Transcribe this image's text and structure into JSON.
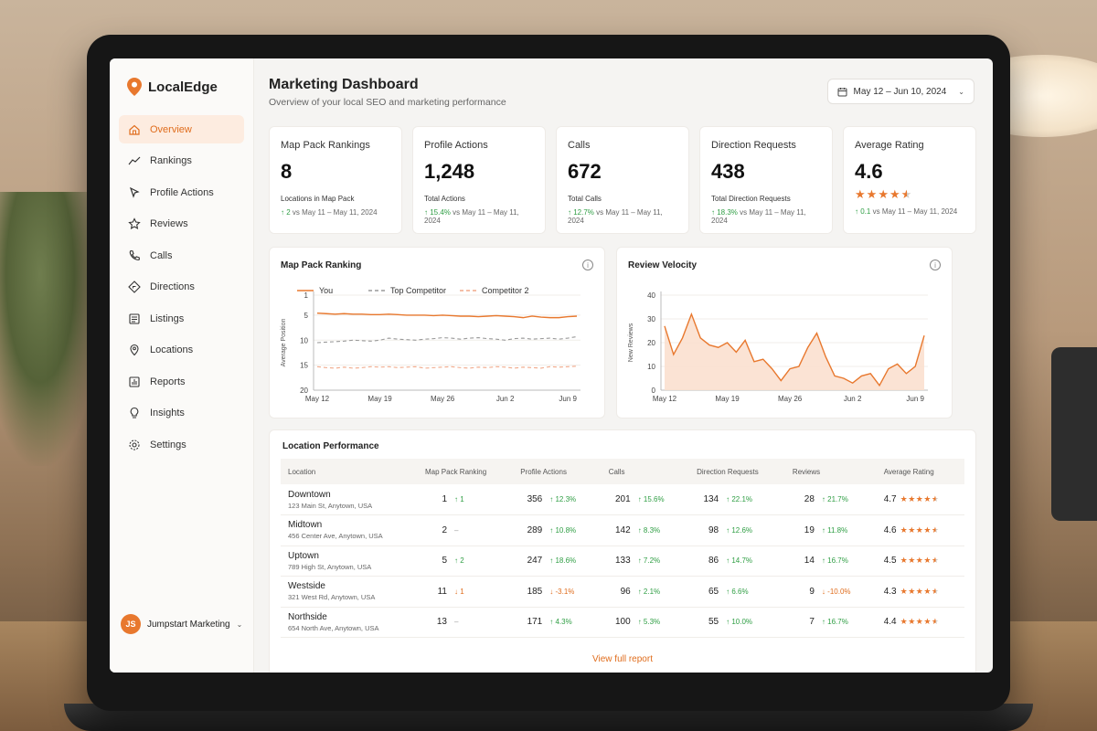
{
  "app": {
    "name": "LocalEdge",
    "brand_color": "#e8782e"
  },
  "sidebar": {
    "items": [
      {
        "label": "Overview",
        "icon": "home-icon",
        "active": true
      },
      {
        "label": "Rankings",
        "icon": "rankings-icon"
      },
      {
        "label": "Profile Actions",
        "icon": "cursor-click-icon"
      },
      {
        "label": "Reviews",
        "icon": "star-icon"
      },
      {
        "label": "Calls",
        "icon": "phone-icon"
      },
      {
        "label": "Directions",
        "icon": "directions-icon"
      },
      {
        "label": "Listings",
        "icon": "list-icon"
      },
      {
        "label": "Locations",
        "icon": "map-pin-icon"
      },
      {
        "label": "Reports",
        "icon": "bar-chart-icon"
      },
      {
        "label": "Insights",
        "icon": "lightbulb-icon"
      },
      {
        "label": "Settings",
        "icon": "gear-icon"
      }
    ],
    "user": {
      "initials": "JS",
      "name": "Jumpstart Marketing"
    }
  },
  "header": {
    "title": "Marketing Dashboard",
    "subtitle": "Overview of your local SEO and marketing performance",
    "date_range": "May 12 – Jun 10, 2024"
  },
  "kpis": [
    {
      "title": "Map Pack Rankings",
      "value": "8",
      "label": "Locations in Map Pack",
      "delta": "2",
      "delta_suffix": "vs May 11 – May 11, 2024"
    },
    {
      "title": "Profile Actions",
      "value": "1,248",
      "label": "Total Actions",
      "delta": "15.4%",
      "delta_suffix": "vs May 11 – May 11, 2024"
    },
    {
      "title": "Calls",
      "value": "672",
      "label": "Total Calls",
      "delta": "12.7%",
      "delta_suffix": "vs May 11 – May 11, 2024"
    },
    {
      "title": "Direction Requests",
      "value": "438",
      "label": "Total Direction Requests",
      "delta": "18.3%",
      "delta_suffix": "vs May 11 – May 11, 2024"
    },
    {
      "title": "Average Rating",
      "value": "4.6",
      "rating": 4.6,
      "delta": "0.1",
      "delta_suffix": "vs May 11 – May 11, 2024"
    }
  ],
  "chart_data": [
    {
      "type": "line",
      "title": "Map Pack Ranking",
      "ylabel": "Average Position",
      "yticks": [
        "1",
        "5",
        "10",
        "15",
        "20"
      ],
      "xticks": [
        "May 12",
        "May 19",
        "May 26",
        "Jun 2",
        "Jun 9"
      ],
      "ylim": [
        1,
        20
      ],
      "y_inverted": true,
      "legend": "top",
      "series": [
        {
          "name": "You",
          "color": "#e8782e",
          "style": "solid",
          "values": [
            4.6,
            4.7,
            4.8,
            4.7,
            4.8,
            4.8,
            4.9,
            4.9,
            4.8,
            4.9,
            5.0,
            5.0,
            5.0,
            5.1,
            5.0,
            5.1,
            5.2,
            5.2,
            5.3,
            5.2,
            5.1,
            5.2,
            5.3,
            5.5,
            5.2,
            5.4,
            5.5,
            5.5,
            5.3,
            5.2
          ]
        },
        {
          "name": "Top Competitor",
          "color": "#9a9a9a",
          "style": "dashed",
          "values": [
            10.5,
            10.4,
            10.3,
            10.2,
            10.0,
            10.1,
            10.2,
            10.0,
            9.6,
            9.8,
            9.9,
            10.0,
            9.8,
            9.7,
            9.5,
            9.6,
            9.8,
            9.6,
            9.5,
            9.7,
            9.8,
            10.0,
            9.7,
            9.6,
            9.8,
            9.7,
            9.6,
            9.8,
            9.6,
            9.3
          ]
        },
        {
          "name": "Competitor 2",
          "color": "#f1a98a",
          "style": "dashed",
          "values": [
            15.3,
            15.5,
            15.6,
            15.4,
            15.6,
            15.5,
            15.3,
            15.4,
            15.3,
            15.5,
            15.4,
            15.3,
            15.6,
            15.5,
            15.4,
            15.3,
            15.5,
            15.6,
            15.4,
            15.5,
            15.3,
            15.4,
            15.6,
            15.4,
            15.5,
            15.6,
            15.3,
            15.4,
            15.3,
            15.2
          ]
        }
      ]
    },
    {
      "type": "area",
      "title": "Review Velocity",
      "ylabel": "New Reviews",
      "yticks": [
        "0",
        "10",
        "20",
        "30",
        "40"
      ],
      "xticks": [
        "May 12",
        "May 19",
        "May 26",
        "Jun 2",
        "Jun 9"
      ],
      "ylim": [
        0,
        40
      ],
      "series": [
        {
          "name": "Reviews",
          "color": "#e8782e",
          "values": [
            27,
            15,
            22,
            32,
            22,
            19,
            18,
            20,
            16,
            21,
            12,
            13,
            9,
            4,
            9,
            10,
            18,
            24,
            14,
            6,
            5,
            3,
            6,
            7,
            2,
            9,
            11,
            7,
            10,
            23
          ]
        }
      ]
    }
  ],
  "table": {
    "title": "Location Performance",
    "headers": [
      "Location",
      "Map Pack Ranking",
      "Profile Actions",
      "Calls",
      "Direction Requests",
      "Reviews",
      "Average Rating"
    ],
    "rows": [
      {
        "name": "Downtown",
        "address": "123 Main St, Anytown, USA",
        "rank": "1",
        "rank_delta": "1",
        "rank_dir": "up",
        "actions": "356",
        "actions_delta": "12.3%",
        "actions_dir": "up",
        "calls": "201",
        "calls_delta": "15.6%",
        "calls_dir": "up",
        "directions": "134",
        "directions_delta": "22.1%",
        "directions_dir": "up",
        "reviews": "28",
        "reviews_delta": "21.7%",
        "reviews_dir": "up",
        "rating": "4.7",
        "rating_num": 4.7
      },
      {
        "name": "Midtown",
        "address": "456 Center Ave, Anytown, USA",
        "rank": "2",
        "rank_delta": "–",
        "rank_dir": "none",
        "actions": "289",
        "actions_delta": "10.8%",
        "actions_dir": "up",
        "calls": "142",
        "calls_delta": "8.3%",
        "calls_dir": "up",
        "directions": "98",
        "directions_delta": "12.6%",
        "directions_dir": "up",
        "reviews": "19",
        "reviews_delta": "11.8%",
        "reviews_dir": "up",
        "rating": "4.6",
        "rating_num": 4.6
      },
      {
        "name": "Uptown",
        "address": "789 High St, Anytown, USA",
        "rank": "5",
        "rank_delta": "2",
        "rank_dir": "up",
        "actions": "247",
        "actions_delta": "18.6%",
        "actions_dir": "up",
        "calls": "133",
        "calls_delta": "7.2%",
        "calls_dir": "up",
        "directions": "86",
        "directions_delta": "14.7%",
        "directions_dir": "up",
        "reviews": "14",
        "reviews_delta": "16.7%",
        "reviews_dir": "up",
        "rating": "4.5",
        "rating_num": 4.5
      },
      {
        "name": "Westside",
        "address": "321 West Rd, Anytown, USA",
        "rank": "11",
        "rank_delta": "1",
        "rank_dir": "down",
        "actions": "185",
        "actions_delta": "-3.1%",
        "actions_dir": "down",
        "calls": "96",
        "calls_delta": "2.1%",
        "calls_dir": "up",
        "directions": "65",
        "directions_delta": "6.6%",
        "directions_dir": "up",
        "reviews": "9",
        "reviews_delta": "-10.0%",
        "reviews_dir": "down",
        "rating": "4.3",
        "rating_num": 4.3
      },
      {
        "name": "Northside",
        "address": "654 North Ave, Anytown, USA",
        "rank": "13",
        "rank_delta": "–",
        "rank_dir": "none",
        "actions": "171",
        "actions_delta": "4.3%",
        "actions_dir": "up",
        "calls": "100",
        "calls_delta": "5.3%",
        "calls_dir": "up",
        "directions": "55",
        "directions_delta": "10.0%",
        "directions_dir": "up",
        "reviews": "7",
        "reviews_delta": "16.7%",
        "reviews_dir": "up",
        "rating": "4.4",
        "rating_num": 4.4
      }
    ],
    "view_link": "View full report"
  }
}
